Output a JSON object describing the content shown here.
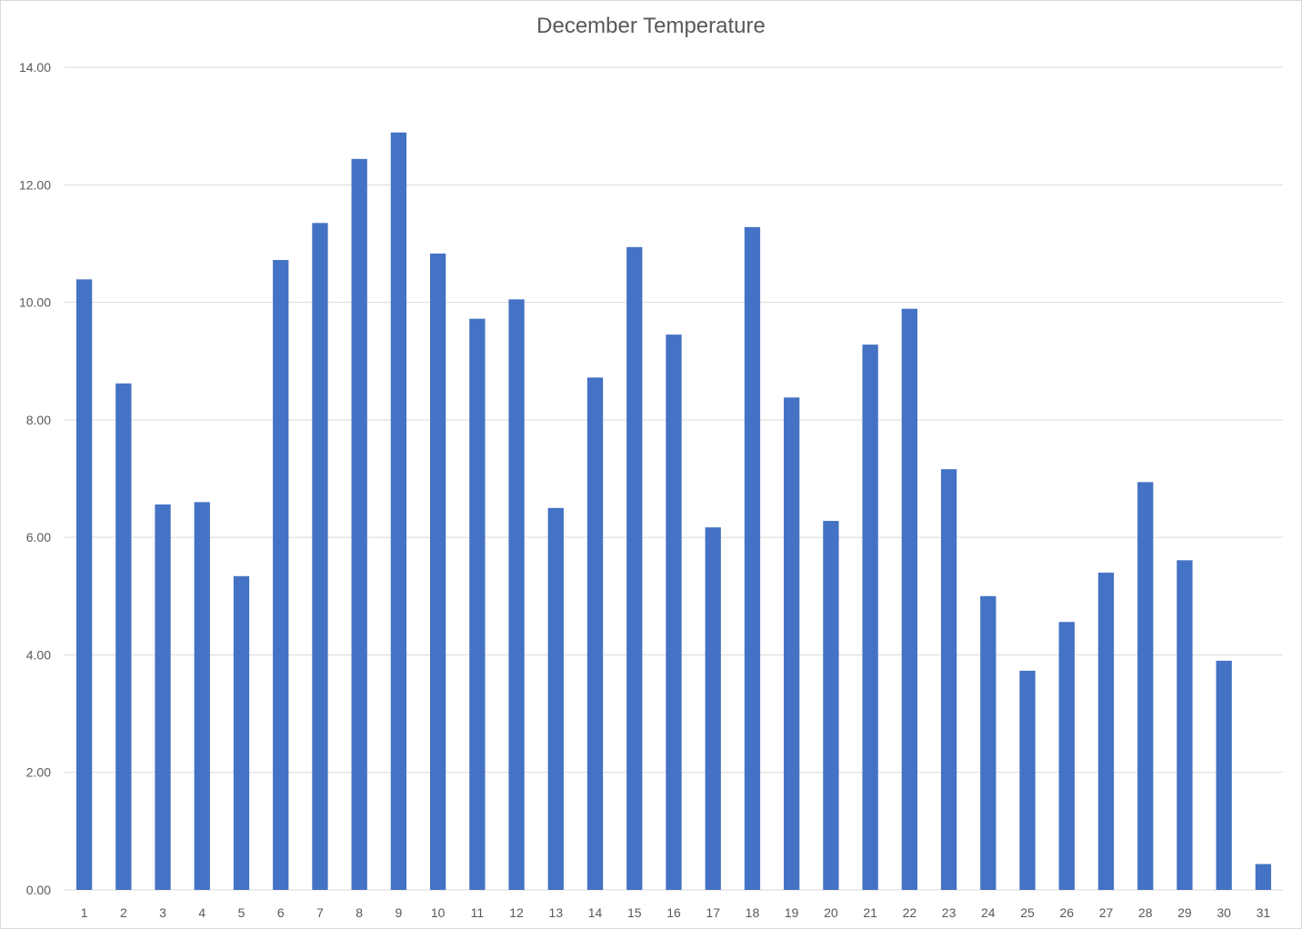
{
  "chart_data": {
    "type": "bar",
    "title": "December Temperature",
    "xlabel": "",
    "ylabel": "",
    "ylim": [
      0,
      14
    ],
    "ytick_step": 2,
    "ytick_labels": [
      "0.00",
      "2.00",
      "4.00",
      "6.00",
      "8.00",
      "10.00",
      "12.00",
      "14.00"
    ],
    "grid": true,
    "legend": "none",
    "bar_color": "#4472C4",
    "grid_color": "#d9d9d9",
    "categories": [
      "1",
      "2",
      "3",
      "4",
      "5",
      "6",
      "7",
      "8",
      "9",
      "10",
      "11",
      "12",
      "13",
      "14",
      "15",
      "16",
      "17",
      "18",
      "19",
      "20",
      "21",
      "22",
      "23",
      "24",
      "25",
      "26",
      "27",
      "28",
      "29",
      "30",
      "31"
    ],
    "values": [
      10.39,
      8.62,
      6.56,
      6.6,
      5.34,
      10.72,
      11.35,
      12.44,
      12.89,
      10.83,
      9.72,
      10.05,
      6.5,
      8.72,
      10.94,
      9.45,
      6.17,
      11.28,
      8.38,
      6.28,
      9.28,
      9.89,
      7.16,
      5.0,
      3.73,
      4.56,
      5.4,
      6.94,
      5.61,
      3.9,
      0.44
    ]
  }
}
